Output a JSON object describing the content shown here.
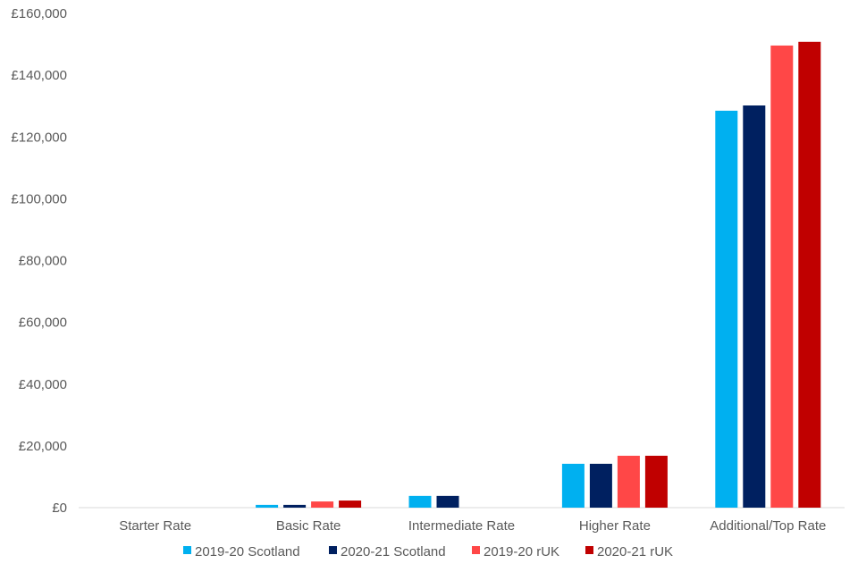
{
  "chart_data": {
    "type": "bar",
    "title": "",
    "xlabel": "",
    "ylabel": "",
    "categories": [
      "Starter Rate",
      "Basic Rate",
      "Intermediate Rate",
      "Higher Rate",
      "Additional/Top Rate"
    ],
    "series": [
      {
        "name": "2019-20 Scotland",
        "color": "#00B0F0",
        "values": [
          0,
          900,
          3800,
          14200,
          128500
        ]
      },
      {
        "name": "2020-21 Scotland",
        "color": "#002060",
        "values": [
          0,
          900,
          3800,
          14200,
          130200
        ]
      },
      {
        "name": "2019-20 rUK",
        "color": "#FF4747",
        "values": [
          0,
          2000,
          0,
          16800,
          149600
        ]
      },
      {
        "name": "2020-21 rUK",
        "color": "#C00000",
        "values": [
          0,
          2300,
          0,
          16800,
          150800
        ]
      }
    ],
    "ylim": [
      0,
      160000
    ],
    "yticks": [
      0,
      20000,
      40000,
      60000,
      80000,
      100000,
      120000,
      140000,
      160000
    ],
    "ytick_labels": [
      "£0",
      "£20,000",
      "£40,000",
      "£60,000",
      "£80,000",
      "£100,000",
      "£120,000",
      "£140,000",
      "£160,000"
    ],
    "grid": false,
    "legend": "bottom"
  }
}
